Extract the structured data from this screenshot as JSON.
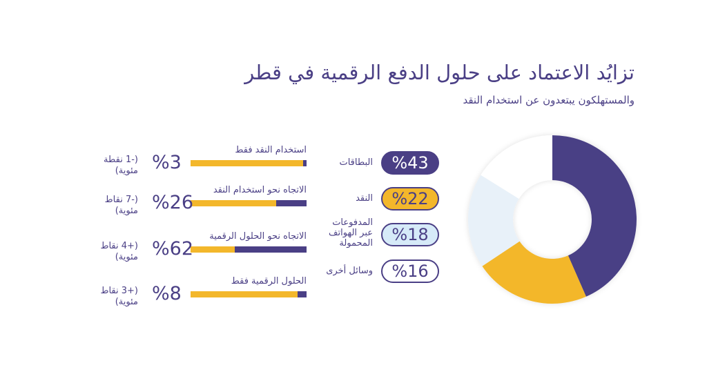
{
  "title": "تزايُد الاعتماد على حلول الدفع الرقمية في قطر",
  "subtitle": "والمستهلكون يبتعدون عن استخدام النقد",
  "colors": {
    "purple": "#4a3f85",
    "yellow": "#f3b72b",
    "lightblue": "#e8f1f9",
    "white": "#ffffff"
  },
  "chart_data": [
    {
      "type": "pie",
      "donut": true,
      "categories": [
        "البطاقات",
        "النقد",
        "المدفوعات عبر الهواتف المحمولة",
        "وسائل أخرى"
      ],
      "values": [
        43,
        22,
        18,
        16
      ],
      "labels": [
        "%43",
        "%22",
        "%18",
        "%16"
      ],
      "colors": [
        "#4a3f85",
        "#f3b72b",
        "#e8f1f9",
        "#ffffff"
      ]
    },
    {
      "type": "bar",
      "orientation": "horizontal",
      "categories": [
        "استخدام النقد فقط",
        "الاتجاه نحو استخدام النقد",
        "الاتجاه نحو الحلول الرقمية",
        "الحلول الرقمية فقط"
      ],
      "values": [
        3,
        26,
        62,
        8
      ],
      "labels": [
        "%3",
        "%26",
        "%62",
        "%8"
      ],
      "changes": [
        "(-1 نقطة مئوية)",
        "(-7 نقاط مئوية)",
        "(+4 نقاط مئوية)",
        "(+3 نقاط مئوية)"
      ]
    }
  ]
}
